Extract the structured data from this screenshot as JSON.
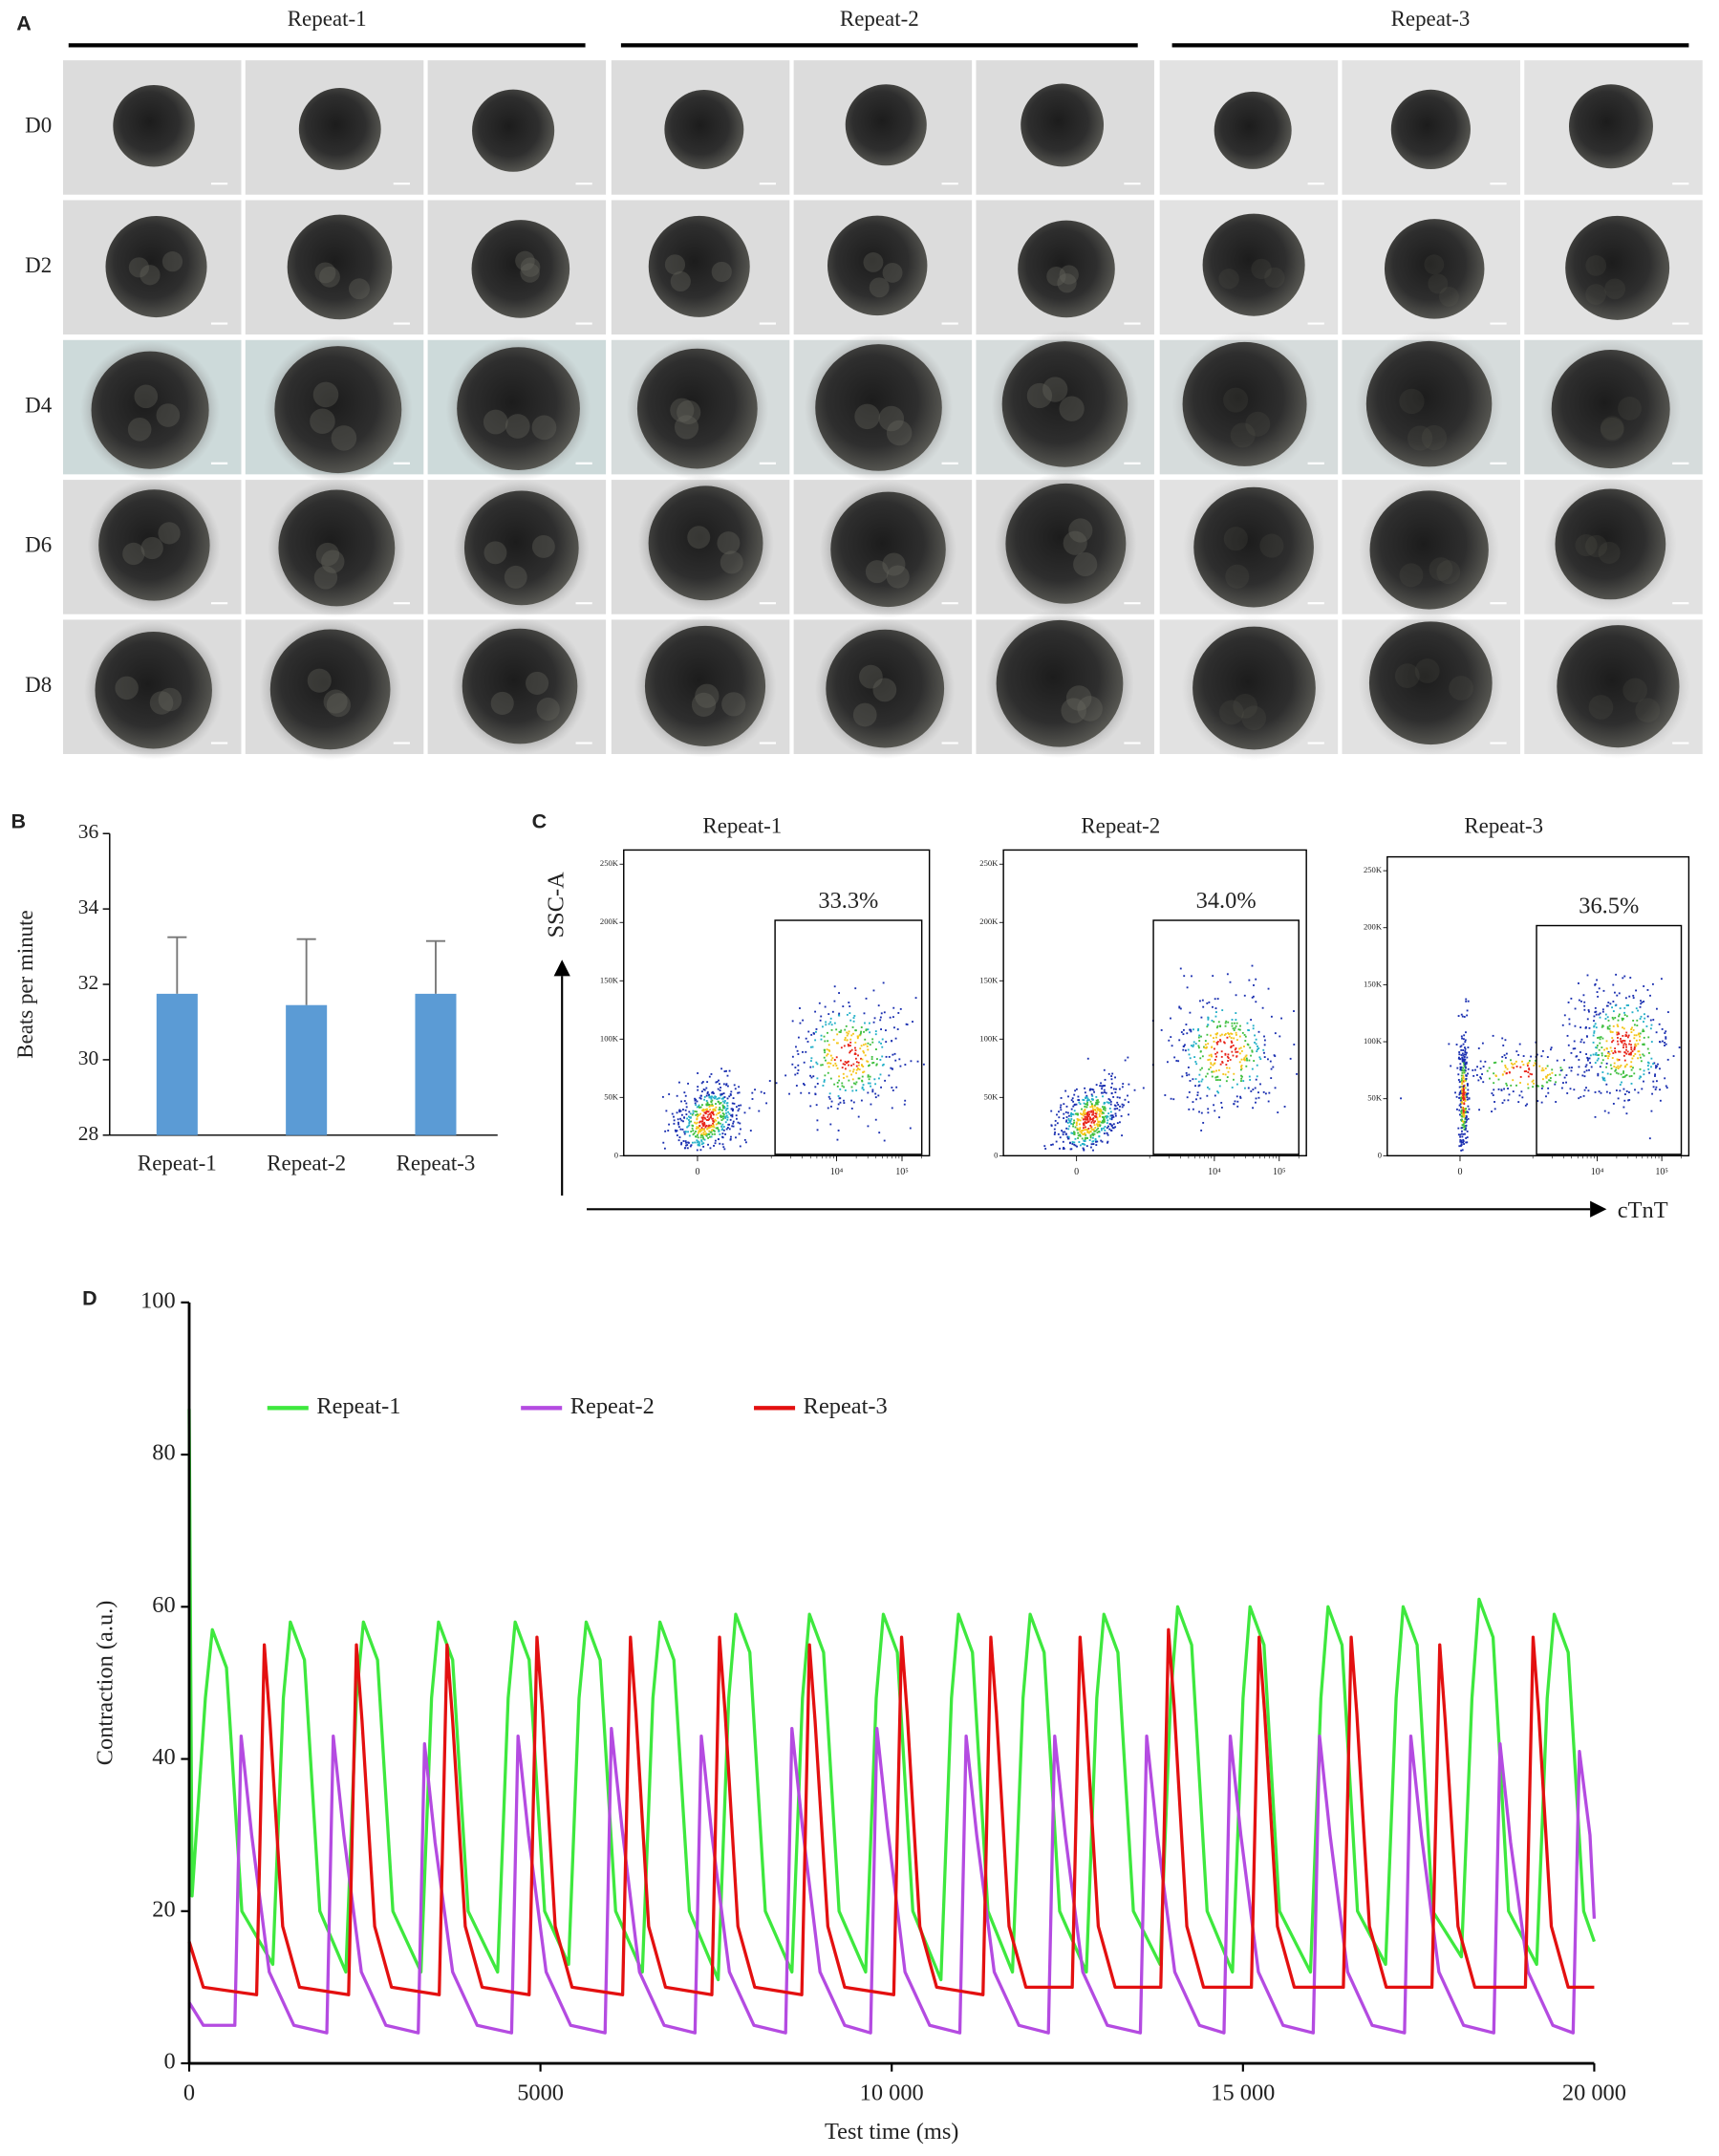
{
  "panel_labels": [
    "A",
    "B",
    "C",
    "D"
  ],
  "panel_a": {
    "columns": [
      "Repeat-1",
      "Repeat-2",
      "Repeat-3"
    ],
    "rows": [
      "D0",
      "D2",
      "D4",
      "D6",
      "D8"
    ]
  },
  "flow_axes": {
    "xlabel": "cTnT",
    "ylabel": "SSC-A"
  },
  "chart_data": [
    {
      "type": "bar",
      "ylabel": "Beats per minute",
      "categories": [
        "Repeat-1",
        "Repeat-2",
        "Repeat-3"
      ],
      "values": [
        31.75,
        31.45,
        31.75
      ],
      "errors": [
        1.5,
        1.75,
        1.4
      ],
      "color": "#5b9bd5",
      "ylim": [
        28,
        36
      ],
      "yticks": [
        28,
        30,
        32,
        34,
        36
      ]
    },
    {
      "type": "flow",
      "title": "Repeat-1",
      "values": [
        33.3
      ],
      "value_labels": [
        "33.3%"
      ],
      "xlim": [
        -1000,
        262144
      ],
      "xticks": [
        0,
        {
          "value": 10000,
          "label": "10⁴"
        },
        {
          "value": 100000,
          "label": "10⁵"
        }
      ],
      "ylim": [
        0,
        262144
      ],
      "yticks": [
        0,
        {
          "value": 50000,
          "label": "50K"
        },
        {
          "value": 100000,
          "label": "100K"
        },
        {
          "value": 150000,
          "label": "150K"
        },
        {
          "value": 200000,
          "label": "200K"
        },
        {
          "value": 250000,
          "label": "250K"
        }
      ]
    },
    {
      "type": "flow",
      "title": "Repeat-2",
      "values": [
        34.0
      ],
      "value_labels": [
        "34.0%"
      ],
      "xlim": [
        -1000,
        262144
      ],
      "xticks": [
        0,
        {
          "value": 10000,
          "label": "10⁴"
        },
        {
          "value": 100000,
          "label": "10⁵"
        }
      ],
      "ylim": [
        0,
        262144
      ],
      "yticks": [
        0,
        {
          "value": 50000,
          "label": "50K"
        },
        {
          "value": 100000,
          "label": "100K"
        },
        {
          "value": 150000,
          "label": "150K"
        },
        {
          "value": 200000,
          "label": "200K"
        },
        {
          "value": 250000,
          "label": "250K"
        }
      ]
    },
    {
      "type": "flow",
      "title": "Repeat-3",
      "values": [
        36.5
      ],
      "value_labels": [
        "36.5%"
      ],
      "xlim": [
        -1000,
        262144
      ],
      "xticks": [
        0,
        {
          "value": 10000,
          "label": "10⁴"
        },
        {
          "value": 100000,
          "label": "10⁵"
        }
      ],
      "ylim": [
        0,
        262144
      ],
      "yticks": [
        0,
        {
          "value": 50000,
          "label": "50K"
        },
        {
          "value": 100000,
          "label": "100K"
        },
        {
          "value": 150000,
          "label": "150K"
        },
        {
          "value": 200000,
          "label": "200K"
        },
        {
          "value": 250000,
          "label": "250K"
        }
      ]
    },
    {
      "type": "line",
      "xlabel": "Test time (ms)",
      "ylabel": "Contraction (a.u.)",
      "legend": "upper left",
      "xlim": [
        0,
        20000
      ],
      "ylim": [
        0,
        100
      ],
      "xticks": [
        0,
        5000,
        {
          "value": 10000,
          "label": "10 000"
        },
        {
          "value": 15000,
          "label": "15 000"
        },
        {
          "value": 20000,
          "label": "20 000"
        }
      ],
      "yticks": [
        0,
        20,
        40,
        60,
        80,
        100
      ],
      "series": [
        {
          "name": "Repeat-1",
          "color": "#3ee83e",
          "x": [
            0,
            40,
            230,
            330,
            530,
            750,
            1190,
            1340,
            1440,
            1640,
            1860,
            2230,
            2380,
            2480,
            2680,
            2900,
            3300,
            3450,
            3550,
            3750,
            3970,
            4390,
            4540,
            4640,
            4840,
            5060,
            5400,
            5550,
            5650,
            5850,
            6070,
            6450,
            6600,
            6700,
            6900,
            7120,
            7530,
            7680,
            7780,
            7980,
            8200,
            8580,
            8730,
            8830,
            9030,
            9250,
            9630,
            9780,
            9880,
            10080,
            10300,
            10700,
            10850,
            10950,
            11150,
            11370,
            11720,
            11870,
            11970,
            12170,
            12390,
            12770,
            12920,
            13020,
            13220,
            13440,
            13820,
            13970,
            14070,
            14270,
            14490,
            14850,
            15000,
            15100,
            15300,
            15520,
            15960,
            16110,
            16210,
            16410,
            16630,
            17030,
            17180,
            17280,
            17480,
            17700,
            18110,
            18260,
            18360,
            18560,
            18780,
            19180,
            19330,
            19430,
            19630,
            19850,
            20000
          ],
          "values": [
            86,
            22,
            48,
            57,
            52,
            20,
            13,
            48,
            58,
            53,
            20,
            12,
            48,
            58,
            53,
            20,
            12,
            48,
            58,
            53,
            20,
            12,
            48,
            58,
            53,
            20,
            13,
            48,
            58,
            53,
            20,
            12,
            48,
            58,
            53,
            20,
            11,
            48,
            59,
            54,
            20,
            12,
            48,
            59,
            54,
            20,
            12,
            48,
            59,
            54,
            20,
            11,
            48,
            59,
            54,
            20,
            12,
            48,
            59,
            54,
            20,
            12,
            48,
            59,
            54,
            20,
            13,
            48,
            60,
            55,
            20,
            12,
            48,
            60,
            55,
            20,
            12,
            48,
            60,
            55,
            20,
            13,
            48,
            60,
            55,
            20,
            14,
            48,
            61,
            56,
            20,
            13,
            48,
            59,
            54,
            20,
            16
          ]
        },
        {
          "name": "Repeat-2",
          "color": "#b44be1",
          "x": [
            0,
            200,
            650,
            740,
            890,
            1140,
            1490,
            1960,
            2050,
            2200,
            2450,
            2800,
            3260,
            3350,
            3500,
            3750,
            4100,
            4590,
            4680,
            4830,
            5080,
            5430,
            5920,
            6010,
            6160,
            6410,
            6760,
            7200,
            7290,
            7440,
            7690,
            8040,
            8490,
            8580,
            8730,
            8980,
            9330,
            9700,
            9790,
            9940,
            10190,
            10540,
            10970,
            11060,
            11210,
            11460,
            11810,
            12230,
            12320,
            12470,
            12720,
            13070,
            13540,
            13630,
            13780,
            14030,
            14380,
            14730,
            14820,
            14970,
            15220,
            15570,
            16000,
            16090,
            16240,
            16490,
            16840,
            17300,
            17390,
            17540,
            17790,
            18140,
            18570,
            18660,
            18810,
            19060,
            19410,
            19700,
            19790,
            19940,
            20000
          ],
          "values": [
            8,
            5,
            5,
            43,
            30,
            12,
            5,
            4,
            43,
            30,
            12,
            5,
            4,
            42,
            29,
            12,
            5,
            4,
            43,
            30,
            12,
            5,
            4,
            44,
            31,
            12,
            5,
            4,
            43,
            30,
            12,
            5,
            4,
            44,
            31,
            12,
            5,
            4,
            44,
            31,
            12,
            5,
            4,
            43,
            30,
            12,
            5,
            4,
            43,
            30,
            12,
            5,
            4,
            43,
            30,
            12,
            5,
            4,
            43,
            30,
            12,
            5,
            4,
            43,
            30,
            12,
            5,
            4,
            43,
            30,
            12,
            5,
            4,
            42,
            29,
            12,
            5,
            4,
            41,
            30,
            19
          ]
        },
        {
          "name": "Repeat-3",
          "color": "#e31010",
          "x": [
            0,
            200,
            960,
            1070,
            1150,
            1330,
            1570,
            2270,
            2380,
            2460,
            2640,
            2880,
            3560,
            3670,
            3750,
            3930,
            4170,
            4840,
            4950,
            5030,
            5210,
            5450,
            6170,
            6280,
            6360,
            6540,
            6780,
            7440,
            7550,
            7630,
            7810,
            8050,
            8720,
            8830,
            8910,
            9090,
            9330,
            10030,
            10140,
            10220,
            10400,
            10640,
            11300,
            11410,
            11490,
            11670,
            11910,
            12570,
            12680,
            12760,
            12940,
            13180,
            13830,
            13940,
            14020,
            14200,
            14440,
            15120,
            15230,
            15310,
            15490,
            15730,
            16430,
            16540,
            16620,
            16800,
            17040,
            17690,
            17800,
            17880,
            18060,
            18300,
            19020,
            19130,
            19210,
            19390,
            19630,
            20000
          ],
          "values": [
            16,
            10,
            9,
            55,
            45,
            18,
            10,
            9,
            55,
            45,
            18,
            10,
            9,
            55,
            45,
            18,
            10,
            9,
            56,
            46,
            18,
            10,
            9,
            56,
            46,
            18,
            10,
            9,
            56,
            46,
            18,
            10,
            9,
            55,
            45,
            18,
            10,
            9,
            56,
            46,
            18,
            10,
            9,
            56,
            46,
            18,
            10,
            10,
            56,
            46,
            18,
            10,
            10,
            57,
            47,
            18,
            10,
            10,
            56,
            46,
            18,
            10,
            10,
            56,
            46,
            18,
            10,
            10,
            55,
            45,
            18,
            10,
            10,
            56,
            46,
            18,
            10,
            10
          ]
        }
      ]
    }
  ]
}
